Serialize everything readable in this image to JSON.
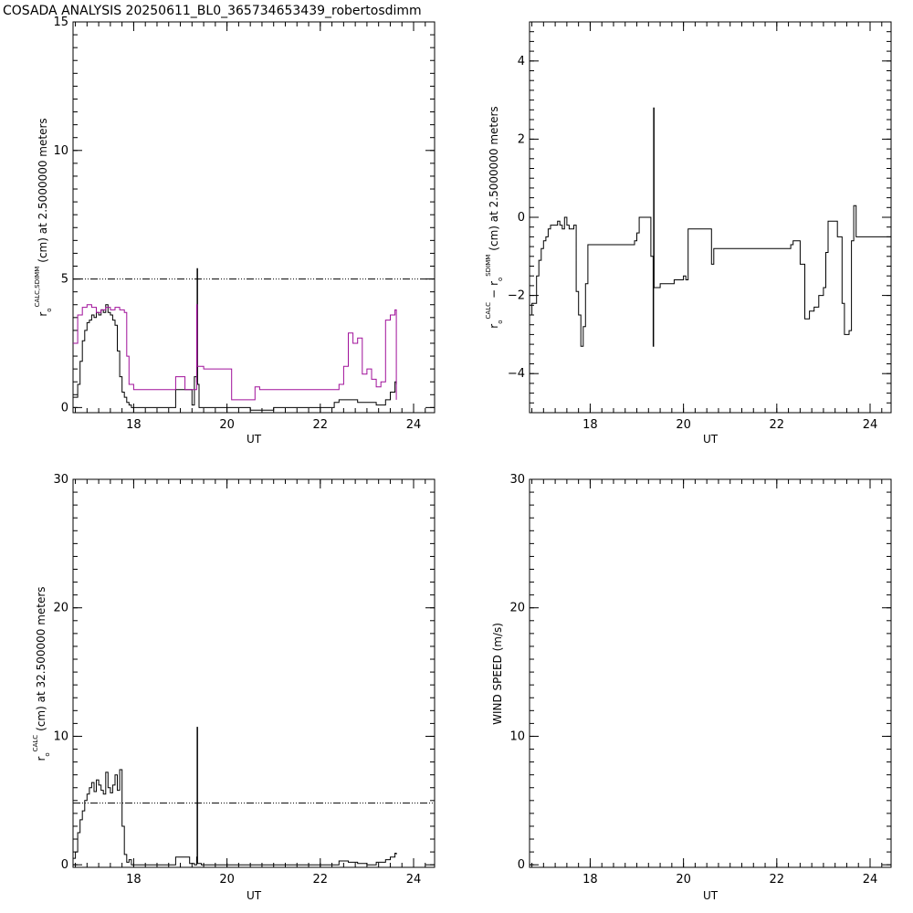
{
  "page": {
    "title": "COSADA ANALYSIS 20250611_BL0_365734653439_robertosdimm"
  },
  "colors": {
    "series_black": "#000000",
    "series_magenta": "#a0109a",
    "background": "#ffffff"
  },
  "chart_data": [
    {
      "id": "top-left",
      "type": "line",
      "xlabel": "UT",
      "ylabel_parts": {
        "r": "r",
        "o": "o",
        "sup": "CALC,SDIMM",
        "rest": "(cm)  at  2.5000000 meters"
      },
      "xlim": [
        16.7,
        24.45
      ],
      "ylim": [
        -0.2,
        15
      ],
      "xticks": [
        18,
        20,
        22,
        24
      ],
      "xtick_labels": [
        "18",
        "20",
        "22",
        "24"
      ],
      "yticks": [
        0,
        5,
        10,
        15
      ],
      "ytick_labels": [
        "0",
        "5",
        "10",
        "15"
      ],
      "xminor": 0.25,
      "yminor": 0.5,
      "reference_line": 5,
      "series": [
        {
          "color": "#000000",
          "step": true,
          "x": [
            16.7,
            16.8,
            16.85,
            16.9,
            16.95,
            17.0,
            17.05,
            17.1,
            17.15,
            17.2,
            17.25,
            17.3,
            17.35,
            17.4,
            17.45,
            17.5,
            17.55,
            17.6,
            17.65,
            17.7,
            17.75,
            17.8,
            17.85,
            17.9,
            17.95,
            18.05,
            18.9,
            19.1,
            19.25,
            19.3,
            19.35,
            19.36,
            19.37,
            19.4,
            19.5,
            20.1,
            20.5,
            21.0,
            22.2,
            22.3,
            22.4,
            22.6,
            22.8,
            23.0,
            23.2,
            23.4,
            23.5,
            23.6,
            23.63
          ],
          "y": [
            0.4,
            0.9,
            1.8,
            2.6,
            3.0,
            3.3,
            3.4,
            3.6,
            3.5,
            3.7,
            3.6,
            3.8,
            3.7,
            4.0,
            3.7,
            3.6,
            3.4,
            3.2,
            2.2,
            1.2,
            0.6,
            0.4,
            0.2,
            0.1,
            0.0,
            0.0,
            0.7,
            0.7,
            0.1,
            1.2,
            1.0,
            5.4,
            0.9,
            0.0,
            0.0,
            0.0,
            -0.1,
            0.0,
            0.0,
            0.2,
            0.3,
            0.3,
            0.2,
            0.2,
            0.1,
            0.3,
            0.6,
            1.0,
            0.9
          ]
        },
        {
          "color": "#a0109a",
          "step": true,
          "x": [
            16.7,
            16.8,
            16.9,
            17.0,
            17.1,
            17.2,
            17.3,
            17.4,
            17.5,
            17.6,
            17.7,
            17.8,
            17.85,
            17.9,
            18.0,
            18.8,
            18.9,
            19.1,
            19.3,
            19.35,
            19.36,
            19.37,
            19.4,
            19.5,
            20.1,
            20.5,
            20.6,
            20.7,
            22.3,
            22.4,
            22.5,
            22.6,
            22.7,
            22.8,
            22.9,
            23.0,
            23.1,
            23.2,
            23.3,
            23.4,
            23.5,
            23.6,
            23.63
          ],
          "y": [
            2.5,
            3.6,
            3.9,
            4.0,
            3.9,
            3.7,
            3.8,
            3.9,
            3.8,
            3.9,
            3.8,
            3.7,
            2.0,
            0.9,
            0.7,
            0.7,
            1.2,
            0.7,
            0.7,
            4.0,
            1.6,
            1.6,
            1.6,
            1.5,
            0.3,
            0.3,
            0.8,
            0.7,
            0.7,
            0.9,
            1.6,
            2.9,
            2.5,
            2.7,
            1.3,
            1.5,
            1.1,
            0.8,
            1.0,
            3.4,
            3.6,
            3.8,
            0.3
          ]
        }
      ]
    },
    {
      "id": "top-right",
      "type": "line",
      "xlabel": "UT",
      "ylabel_parts": {
        "r1": "r",
        "o1": "o",
        "sup1": "CALC",
        "minus": "−",
        "r2": "r",
        "o2": "o",
        "sup2": "SDIMM",
        "rest": "(cm)  at  2.5000000 meters"
      },
      "xlim": [
        16.7,
        24.45
      ],
      "ylim": [
        -5,
        5
      ],
      "xticks": [
        18,
        20,
        22,
        24
      ],
      "xtick_labels": [
        "18",
        "20",
        "22",
        "24"
      ],
      "yticks": [
        -4,
        -2,
        0,
        2,
        4
      ],
      "ytick_labels": [
        "−4",
        "−2",
        "0",
        "2",
        "4"
      ],
      "xminor": 0.25,
      "yminor": 0.25,
      "series": [
        {
          "color": "#000000",
          "step": true,
          "x": [
            16.7,
            16.75,
            16.85,
            16.9,
            16.95,
            17.0,
            17.05,
            17.1,
            17.15,
            17.2,
            17.3,
            17.35,
            17.4,
            17.45,
            17.5,
            17.55,
            17.65,
            17.7,
            17.75,
            17.8,
            17.85,
            17.9,
            17.95,
            18.05,
            18.9,
            18.95,
            19.0,
            19.05,
            19.3,
            19.35,
            19.36,
            19.37,
            19.4,
            19.5,
            19.8,
            20.0,
            20.05,
            20.1,
            20.5,
            20.6,
            20.65,
            21.0,
            22.3,
            22.35,
            22.5,
            22.6,
            22.7,
            22.8,
            22.9,
            23.0,
            23.05,
            23.1,
            23.2,
            23.3,
            23.4,
            23.45,
            23.55,
            23.6,
            23.65,
            23.7,
            24.45
          ],
          "y": [
            -2.5,
            -2.2,
            -1.5,
            -1.1,
            -0.8,
            -0.6,
            -0.5,
            -0.3,
            -0.2,
            -0.2,
            -0.1,
            -0.2,
            -0.3,
            0.0,
            -0.2,
            -0.3,
            -0.2,
            -1.9,
            -2.5,
            -3.3,
            -2.8,
            -1.7,
            -0.7,
            -0.7,
            -0.7,
            -0.6,
            -0.4,
            0.0,
            -1.0,
            -3.3,
            2.8,
            -1.8,
            -1.8,
            -1.7,
            -1.6,
            -1.5,
            -1.6,
            -0.3,
            -0.3,
            -1.2,
            -0.8,
            -0.8,
            -0.7,
            -0.6,
            -1.2,
            -2.6,
            -2.4,
            -2.3,
            -2.0,
            -1.8,
            -0.9,
            -0.1,
            -0.1,
            -0.5,
            -2.2,
            -3.0,
            -2.9,
            -0.6,
            0.3,
            -0.5,
            -0.4
          ]
        }
      ]
    },
    {
      "id": "bottom-left",
      "type": "line",
      "xlabel": "UT",
      "ylabel_parts": {
        "r": "r",
        "o": "o",
        "sup": "CALC",
        "rest": "(cm)  at  32.500000 meters"
      },
      "xlim": [
        16.7,
        24.45
      ],
      "ylim": [
        -0.2,
        30
      ],
      "xticks": [
        18,
        20,
        22,
        24
      ],
      "xtick_labels": [
        "18",
        "20",
        "22",
        "24"
      ],
      "yticks": [
        0,
        10,
        20,
        30
      ],
      "ytick_labels": [
        "0",
        "10",
        "20",
        "30"
      ],
      "xminor": 0.25,
      "yminor": 1,
      "reference_line": 4.8,
      "series": [
        {
          "color": "#000000",
          "step": true,
          "x": [
            16.7,
            16.75,
            16.8,
            16.85,
            16.9,
            16.95,
            17.0,
            17.05,
            17.1,
            17.15,
            17.2,
            17.25,
            17.3,
            17.35,
            17.4,
            17.45,
            17.5,
            17.55,
            17.6,
            17.65,
            17.7,
            17.75,
            17.8,
            17.85,
            17.9,
            17.95,
            18.05,
            18.9,
            19.1,
            19.2,
            19.3,
            19.35,
            19.36,
            19.37,
            19.45,
            22.3,
            22.4,
            22.6,
            22.8,
            23.0,
            23.2,
            23.4,
            23.5,
            23.6,
            23.63
          ],
          "y": [
            0.5,
            1.0,
            2.5,
            3.5,
            4.2,
            5.0,
            5.5,
            6.0,
            6.4,
            5.7,
            6.6,
            6.2,
            5.8,
            5.5,
            7.2,
            6.0,
            5.6,
            6.2,
            7.0,
            5.8,
            7.4,
            3.0,
            0.8,
            0.2,
            0.4,
            0.0,
            0.0,
            0.6,
            0.6,
            0.1,
            0.0,
            0.6,
            10.7,
            0.1,
            0.0,
            0.0,
            0.3,
            0.2,
            0.1,
            0.0,
            0.2,
            0.4,
            0.6,
            0.9,
            0.8
          ]
        }
      ]
    },
    {
      "id": "bottom-right",
      "type": "line",
      "xlabel": "UT",
      "ylabel_parts": {
        "rest": "WIND SPEED (m/s)"
      },
      "xlim": [
        16.7,
        24.45
      ],
      "ylim": [
        -0.2,
        30
      ],
      "xticks": [
        18,
        20,
        22,
        24
      ],
      "xtick_labels": [
        "18",
        "20",
        "22",
        "24"
      ],
      "yticks": [
        0,
        10,
        20,
        30
      ],
      "ytick_labels": [
        "0",
        "10",
        "20",
        "30"
      ],
      "xminor": 0.25,
      "yminor": 1,
      "series": []
    }
  ]
}
